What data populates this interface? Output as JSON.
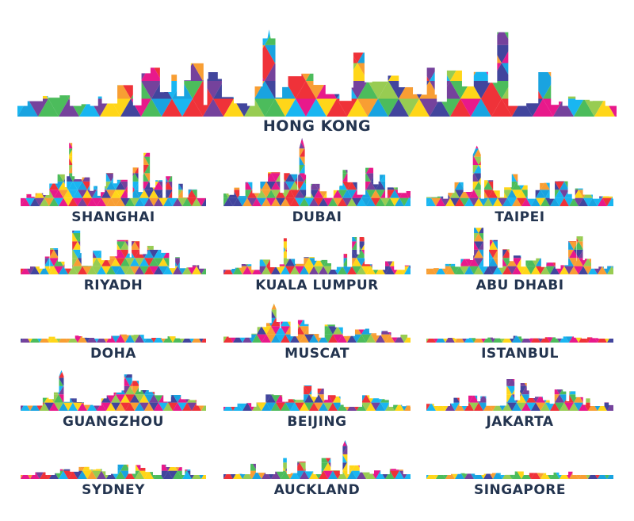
{
  "palette": [
    "#e6007e",
    "#0099dd",
    "#39b54a",
    "#ffd200",
    "#f7941d",
    "#662d91",
    "#ed1c24",
    "#8dc63f",
    "#00aeef",
    "#2e3192"
  ],
  "cities": [
    {
      "name": "HONG KONG"
    },
    {
      "name": "SHANGHAI"
    },
    {
      "name": "DUBAI"
    },
    {
      "name": "TAIPEI"
    },
    {
      "name": "RIYADH"
    },
    {
      "name": "KUALA LUMPUR"
    },
    {
      "name": "ABU DHABI"
    },
    {
      "name": "DOHA"
    },
    {
      "name": "MUSCAT"
    },
    {
      "name": "ISTANBUL"
    },
    {
      "name": "GUANGZHOU"
    },
    {
      "name": "BEIJING"
    },
    {
      "name": "JAKARTA"
    },
    {
      "name": "SYDNEY"
    },
    {
      "name": "AUCKLAND"
    },
    {
      "name": "SINGAPORE"
    }
  ]
}
